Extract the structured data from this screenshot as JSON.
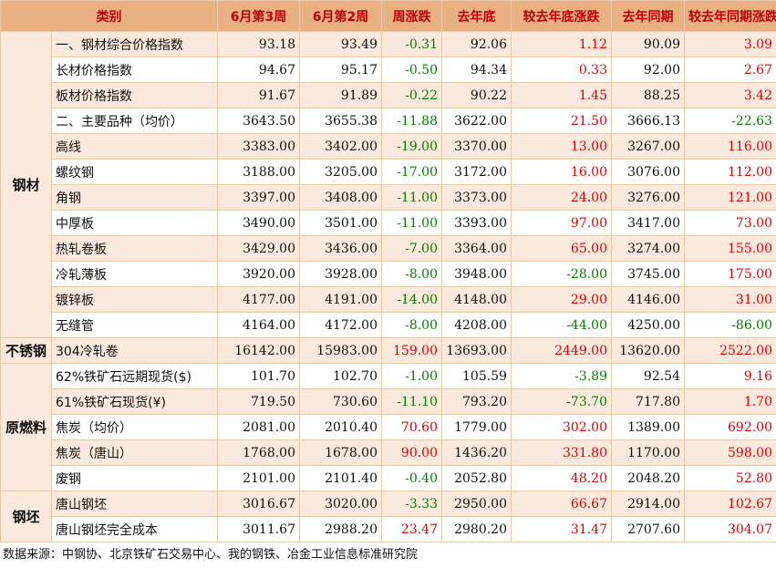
{
  "headers": [
    "类别",
    "6月第3周",
    "6月第2周",
    "周涨跌",
    "去年底",
    "较去年底涨跌",
    "去年同期",
    "较去年同期涨跌"
  ],
  "groups": {
    "steel": "钢材",
    "stainless": "不锈钢",
    "raw": "原燃料",
    "billet": "钢坯"
  },
  "rows": [
    {
      "name": "一、钢材综合价格指数",
      "w3": "93.18",
      "w2": "93.49",
      "wk": "-0.31",
      "ye": "92.06",
      "vs_ye": "1.12",
      "ly": "90.09",
      "vs_ly": "3.09"
    },
    {
      "name": "长材价格指数",
      "w3": "94.67",
      "w2": "95.17",
      "wk": "-0.50",
      "ye": "94.34",
      "vs_ye": "0.33",
      "ly": "92.00",
      "vs_ly": "2.67"
    },
    {
      "name": "板材价格指数",
      "w3": "91.67",
      "w2": "91.89",
      "wk": "-0.22",
      "ye": "90.22",
      "vs_ye": "1.45",
      "ly": "88.25",
      "vs_ly": "3.42"
    },
    {
      "name": "二、主要品种（均价）",
      "w3": "3643.50",
      "w2": "3655.38",
      "wk": "-11.88",
      "ye": "3622.00",
      "vs_ye": "21.50",
      "ly": "3666.13",
      "vs_ly": "-22.63"
    },
    {
      "name": "高线",
      "w3": "3383.00",
      "w2": "3402.00",
      "wk": "-19.00",
      "ye": "3370.00",
      "vs_ye": "13.00",
      "ly": "3267.00",
      "vs_ly": "116.00"
    },
    {
      "name": "螺纹钢",
      "w3": "3188.00",
      "w2": "3205.00",
      "wk": "-17.00",
      "ye": "3172.00",
      "vs_ye": "16.00",
      "ly": "3076.00",
      "vs_ly": "112.00"
    },
    {
      "name": "角钢",
      "w3": "3397.00",
      "w2": "3408.00",
      "wk": "-11.00",
      "ye": "3373.00",
      "vs_ye": "24.00",
      "ly": "3276.00",
      "vs_ly": "121.00"
    },
    {
      "name": "中厚板",
      "w3": "3490.00",
      "w2": "3501.00",
      "wk": "-11.00",
      "ye": "3393.00",
      "vs_ye": "97.00",
      "ly": "3417.00",
      "vs_ly": "73.00"
    },
    {
      "name": "热轧卷板",
      "w3": "3429.00",
      "w2": "3436.00",
      "wk": "-7.00",
      "ye": "3364.00",
      "vs_ye": "65.00",
      "ly": "3274.00",
      "vs_ly": "155.00"
    },
    {
      "name": "冷轧薄板",
      "w3": "3920.00",
      "w2": "3928.00",
      "wk": "-8.00",
      "ye": "3948.00",
      "vs_ye": "-28.00",
      "ly": "3745.00",
      "vs_ly": "175.00"
    },
    {
      "name": "镀锌板",
      "w3": "4177.00",
      "w2": "4191.00",
      "wk": "-14.00",
      "ye": "4148.00",
      "vs_ye": "29.00",
      "ly": "4146.00",
      "vs_ly": "31.00"
    },
    {
      "name": "无缝管",
      "w3": "4164.00",
      "w2": "4172.00",
      "wk": "-8.00",
      "ye": "4208.00",
      "vs_ye": "-44.00",
      "ly": "4250.00",
      "vs_ly": "-86.00"
    },
    {
      "name": "304冷轧卷",
      "w3": "16142.00",
      "w2": "15983.00",
      "wk": "159.00",
      "ye": "13693.00",
      "vs_ye": "2449.00",
      "ly": "13620.00",
      "vs_ly": "2522.00"
    },
    {
      "name": "62%铁矿石远期现货($)",
      "w3": "101.70",
      "w2": "102.70",
      "wk": "-1.00",
      "ye": "105.59",
      "vs_ye": "-3.89",
      "ly": "92.54",
      "vs_ly": "9.16"
    },
    {
      "name": "61%铁矿石现货(¥)",
      "w3": "719.50",
      "w2": "730.60",
      "wk": "-11.10",
      "ye": "793.20",
      "vs_ye": "-73.70",
      "ly": "717.80",
      "vs_ly": "1.70"
    },
    {
      "name": "焦炭（均价）",
      "w3": "2081.00",
      "w2": "2010.40",
      "wk": "70.60",
      "ye": "1779.00",
      "vs_ye": "302.00",
      "ly": "1389.00",
      "vs_ly": "692.00"
    },
    {
      "name": "焦炭（唐山）",
      "w3": "1768.00",
      "w2": "1678.00",
      "wk": "90.00",
      "ye": "1436.20",
      "vs_ye": "331.80",
      "ly": "1170.00",
      "vs_ly": "598.00"
    },
    {
      "name": "废钢",
      "w3": "2101.00",
      "w2": "2101.40",
      "wk": "-0.40",
      "ye": "2052.80",
      "vs_ye": "48.20",
      "ly": "2048.20",
      "vs_ly": "52.80"
    },
    {
      "name": "唐山钢坯",
      "w3": "3016.67",
      "w2": "3020.00",
      "wk": "-3.33",
      "ye": "2950.00",
      "vs_ye": "66.67",
      "ly": "2914.00",
      "vs_ly": "102.67"
    },
    {
      "name": "唐山钢坯完全成本",
      "w3": "3011.67",
      "w2": "2988.20",
      "wk": "23.47",
      "ye": "2980.20",
      "vs_ye": "31.47",
      "ly": "2707.60",
      "vs_ly": "304.07"
    }
  ],
  "source": "数据来源：中钢协、北京铁矿石交易中心、我的钢铁、冶金工业信息标准研究院",
  "colors": {
    "header_bg": "#e9b183",
    "header_text": "#c00000",
    "band": "#fce9dd",
    "up": "#e00000",
    "down": "#008000"
  }
}
